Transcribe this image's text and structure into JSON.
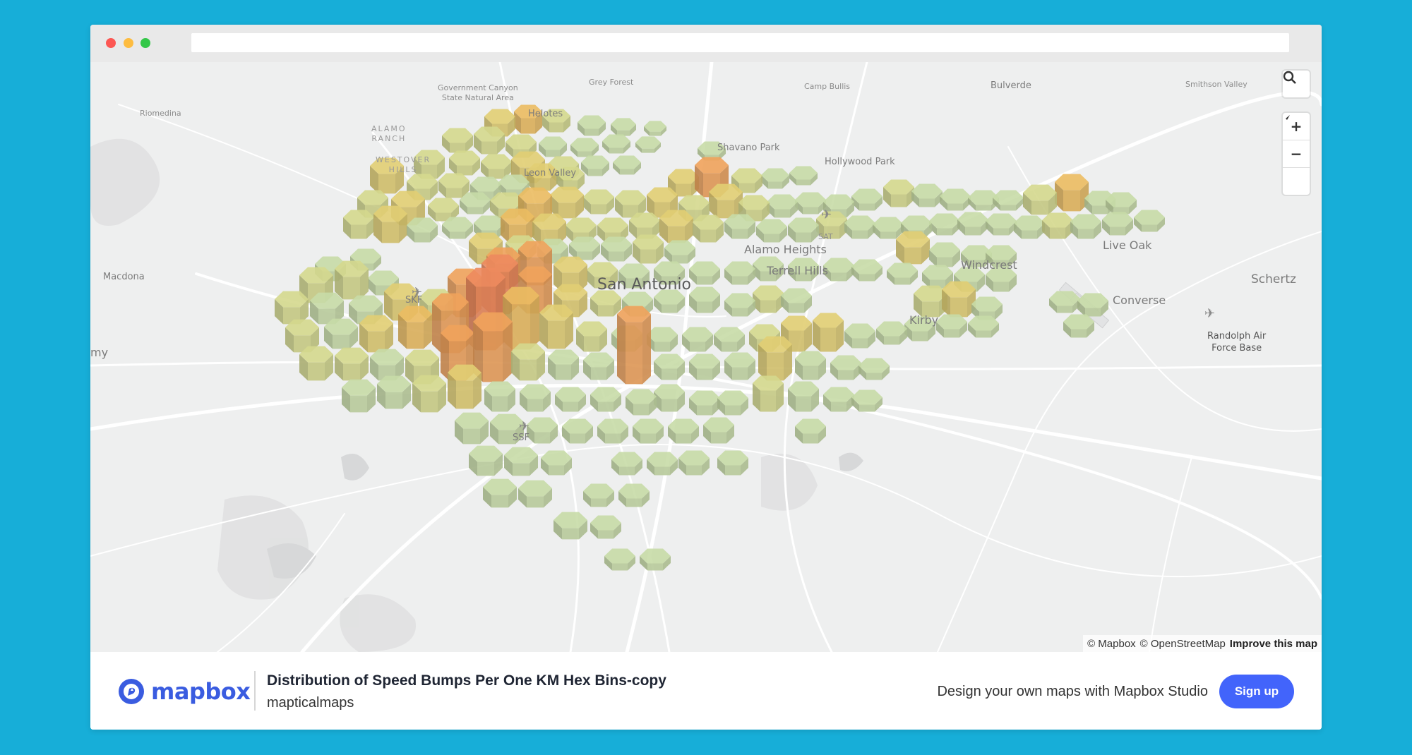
{
  "map": {
    "labels": {
      "san_antonio": "San Antonio",
      "camp_bullis": "Camp Bullis",
      "bulverde": "Bulverde",
      "smithson_valley": "Smithson Valley",
      "grey_forest": "Grey Forest",
      "gov_canyon": "Government Canyon\nState Natural Area",
      "helotes": "Helotes",
      "riomedina": "Riomedina",
      "alamo_ranch": "ALAMO\nRANCH",
      "westover_hills": "WESTOVER\nHILLS",
      "leon_valley": "Leon Valley",
      "shavano_park": "Shavano Park",
      "hollywood_park": "Hollywood Park",
      "sat": "SAT",
      "alamo_heights": "Alamo Heights",
      "terrell_hills": "Terrell Hills",
      "windcrest": "Windcrest",
      "live_oak": "Live Oak",
      "schertz": "Schertz",
      "converse": "Converse",
      "kirby": "Kirby",
      "randolph": "Randolph Air\nForce Base",
      "macdona": "Macdona",
      "skf": "SKF",
      "ssf": "SSF",
      "my": "my"
    },
    "attribution": {
      "mapbox": "© Mapbox",
      "osm": "© OpenStreetMap",
      "improve": "Improve this map"
    },
    "controls": {
      "search_icon": "search-icon",
      "zoom_in": "+",
      "zoom_out": "−",
      "compass": "compass-icon"
    },
    "hex_colors": [
      "#c8dca8",
      "#d5d98e",
      "#e2cf74",
      "#ecbd62",
      "#f0a35c",
      "#ee8a5e"
    ]
  },
  "footer": {
    "logo_text": "mapbox",
    "title": "Distribution of Speed Bumps Per One KM Hex Bins-copy",
    "owner": "mapticalmaps",
    "promo": "Design your own maps with Mapbox Studio",
    "signup": "Sign up"
  },
  "colors": {
    "background": "#17aed8",
    "accent": "#4264fb"
  }
}
